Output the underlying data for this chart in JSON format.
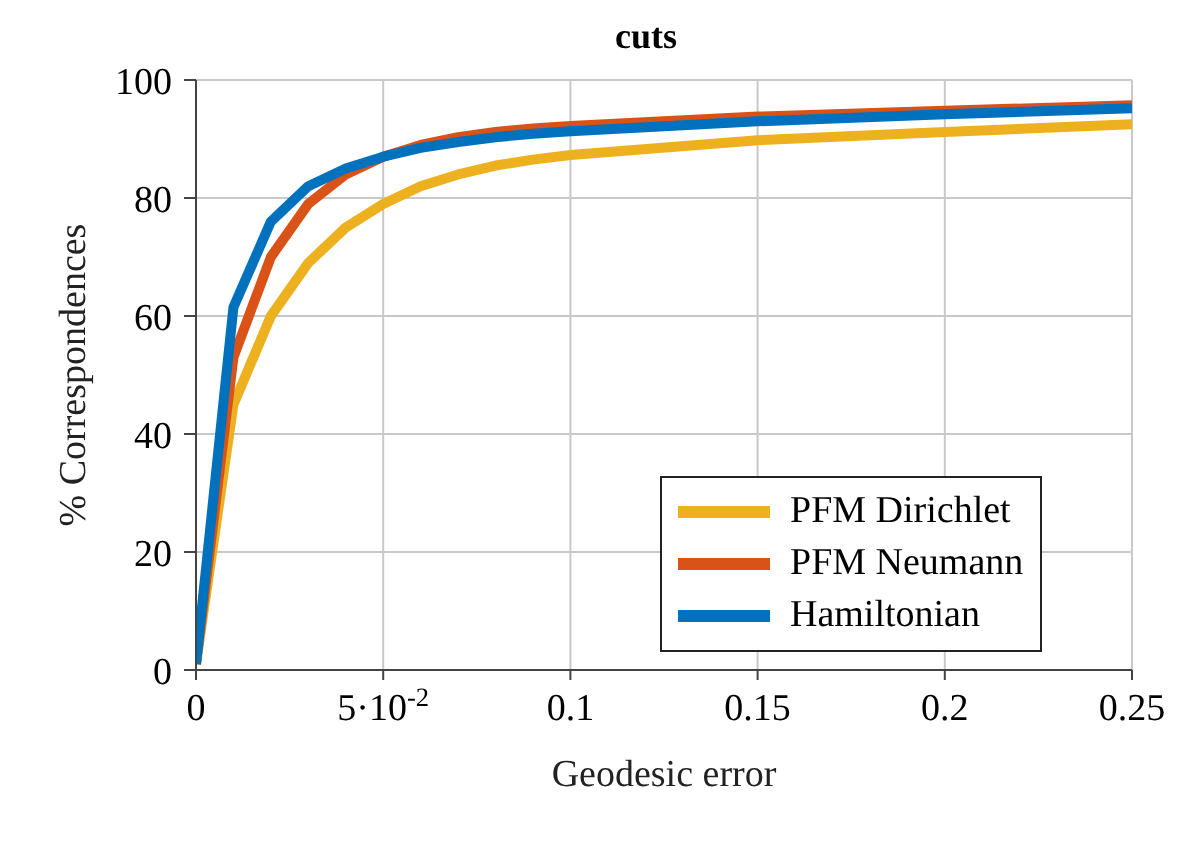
{
  "chart_data": {
    "type": "line",
    "title": "cuts",
    "xlabel": "Geodesic error",
    "ylabel": "% Correspondences",
    "xlim": [
      0,
      0.25
    ],
    "ylim": [
      0,
      100
    ],
    "xticks": [
      0,
      {
        "value": 0.05,
        "label": "5·10$^{-2}$"
      },
      0.1,
      0.15,
      0.2,
      0.25
    ],
    "yticks": [
      0,
      20,
      40,
      60,
      80,
      100
    ],
    "grid": true,
    "legend": "bottom right",
    "marker": "none",
    "line_style": "solid",
    "series": [
      {
        "name": "PFM Dirichlet",
        "color": "#edb120",
        "x": [
          0,
          0.01,
          0.02,
          0.03,
          0.04,
          0.05,
          0.06,
          0.07,
          0.08,
          0.09,
          0.1,
          0.15,
          0.2,
          0.25
        ],
        "values": [
          1,
          45,
          60,
          69,
          75,
          79,
          82,
          84,
          85.5,
          86.5,
          87.3,
          89.8,
          91.2,
          92.5
        ]
      },
      {
        "name": "PFM Neumann",
        "color": "#d95319",
        "x": [
          0,
          0.01,
          0.02,
          0.03,
          0.04,
          0.05,
          0.06,
          0.07,
          0.08,
          0.09,
          0.1,
          0.15,
          0.2,
          0.25
        ],
        "values": [
          1,
          53,
          70,
          79,
          84,
          87,
          89,
          90.3,
          91.2,
          91.8,
          92.2,
          93.8,
          94.8,
          95.7
        ]
      },
      {
        "name": "Hamiltonian",
        "color": "#0072bd",
        "x": [
          0,
          0.01,
          0.02,
          0.03,
          0.04,
          0.05,
          0.06,
          0.07,
          0.08,
          0.09,
          0.1,
          0.15,
          0.2,
          0.25
        ],
        "values": [
          1,
          61.5,
          76,
          82,
          85,
          87,
          88.5,
          89.5,
          90.3,
          90.9,
          91.3,
          93,
          94.2,
          95.2
        ]
      }
    ]
  }
}
